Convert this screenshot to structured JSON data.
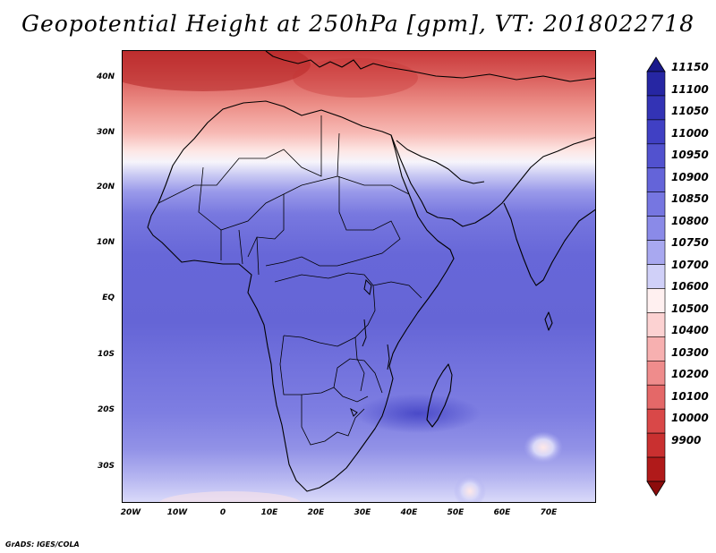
{
  "title": "Geopotential Height at 250hPa [gpm], VT: 2018022718",
  "credit": "GrADS: IGES/COLA",
  "map": {
    "region": "Africa",
    "lon_range": [
      -23,
      80
    ],
    "lat_range": [
      -37,
      45
    ],
    "lat_ticks": [
      "40N",
      "30N",
      "20N",
      "10N",
      "EQ",
      "10S",
      "20S",
      "30S"
    ],
    "lat_values": [
      40,
      30,
      20,
      10,
      0,
      -10,
      -20,
      -30
    ],
    "lon_ticks": [
      "20W",
      "10W",
      "0",
      "10E",
      "20E",
      "30E",
      "40E",
      "50E",
      "60E",
      "70E"
    ],
    "lon_values": [
      -20,
      -10,
      0,
      10,
      20,
      30,
      40,
      50,
      60,
      70
    ]
  },
  "colorbar": {
    "labels": [
      "11150",
      "11100",
      "11050",
      "11000",
      "10950",
      "10900",
      "10850",
      "10800",
      "10750",
      "10700",
      "10600",
      "10500",
      "10400",
      "10300",
      "10200",
      "10100",
      "10000",
      "9900"
    ],
    "colors": [
      "#1a1a8c",
      "#2626a3",
      "#3333b5",
      "#4040c4",
      "#5252cf",
      "#6464d9",
      "#7676e1",
      "#8a8ae8",
      "#a8a8f0",
      "#d0d0f8",
      "#fff0f0",
      "#fcd2d2",
      "#f7b0b0",
      "#ef8c8c",
      "#e46868",
      "#d94848",
      "#c93030",
      "#b01a1a",
      "#8c0c0c"
    ]
  }
}
